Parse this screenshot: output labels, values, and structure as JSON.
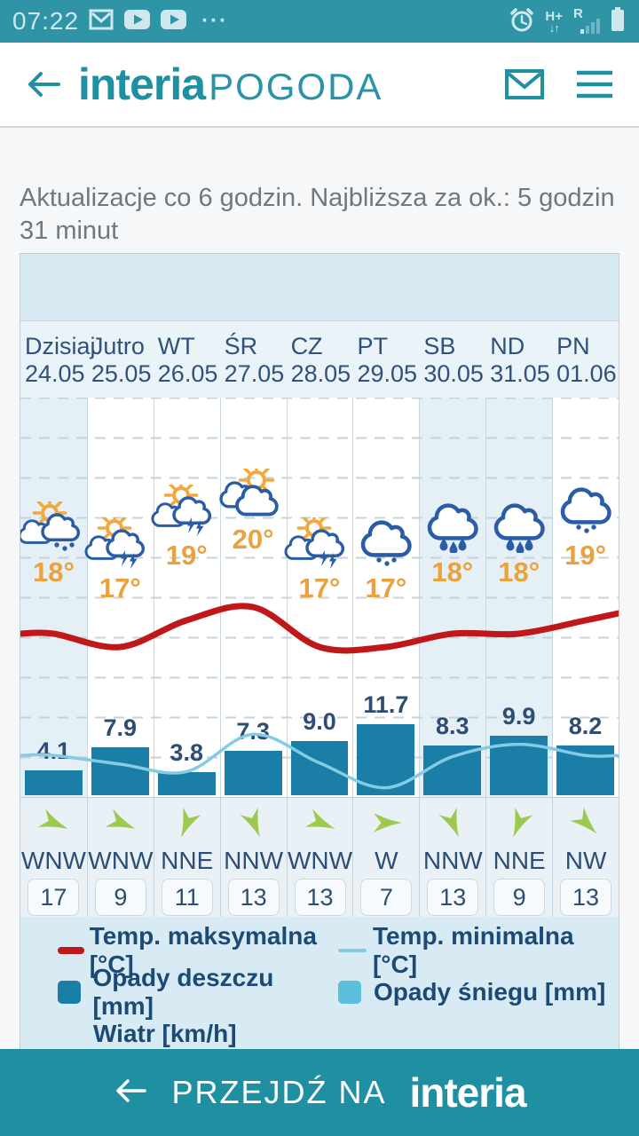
{
  "status_bar": {
    "time": "07:22",
    "notification_icons": [
      "gmail",
      "youtube",
      "youtube",
      "overflow-dots"
    ],
    "system_icons": [
      "alarm-clock",
      "network-h-plus",
      "roaming-signal",
      "battery"
    ],
    "network_label": "H+",
    "roaming_label": "R",
    "overflow_label": "···"
  },
  "header": {
    "logo_primary": "interia",
    "logo_secondary": "POGODA"
  },
  "update_notice": "Aktualizacje co 6 godzin. Najbliższa za ok.: 5 godzin 31 minut",
  "forecast": {
    "days": [
      {
        "name": "Dzisiaj",
        "date": "24.05",
        "icon": "sun-cloud-rain",
        "temp_max_label": "18°",
        "precip_mm": "4.1",
        "wind_dir": "WNW",
        "wind_speed": "17",
        "highlight": true
      },
      {
        "name": "Jutro",
        "date": "25.05",
        "icon": "sun-cloud-storm",
        "temp_max_label": "17°",
        "precip_mm": "7.9",
        "wind_dir": "WNW",
        "wind_speed": "9",
        "highlight": false
      },
      {
        "name": "WT",
        "date": "26.05",
        "icon": "sun-cloud-storm",
        "temp_max_label": "19°",
        "precip_mm": "3.8",
        "wind_dir": "NNE",
        "wind_speed": "11",
        "highlight": false
      },
      {
        "name": "ŚR",
        "date": "27.05",
        "icon": "sun-clouds",
        "temp_max_label": "20°",
        "precip_mm": "7.3",
        "wind_dir": "NNW",
        "wind_speed": "13",
        "highlight": false
      },
      {
        "name": "CZ",
        "date": "28.05",
        "icon": "sun-cloud-storm",
        "temp_max_label": "17°",
        "precip_mm": "9.0",
        "wind_dir": "WNW",
        "wind_speed": "13",
        "highlight": false
      },
      {
        "name": "PT",
        "date": "29.05",
        "icon": "cloud-rain",
        "temp_max_label": "17°",
        "precip_mm": "11.7",
        "wind_dir": "W",
        "wind_speed": "7",
        "highlight": false
      },
      {
        "name": "SB",
        "date": "30.05",
        "icon": "cloud-heavy-rain",
        "temp_max_label": "18°",
        "precip_mm": "8.3",
        "wind_dir": "NNW",
        "wind_speed": "13",
        "highlight": true
      },
      {
        "name": "ND",
        "date": "31.05",
        "icon": "cloud-heavy-rain",
        "temp_max_label": "18°",
        "precip_mm": "9.9",
        "wind_dir": "NNE",
        "wind_speed": "9",
        "highlight": true
      },
      {
        "name": "PN",
        "date": "01.06",
        "icon": "cloud-rain",
        "temp_max_label": "19°",
        "precip_mm": "8.2",
        "wind_dir": "NW",
        "wind_speed": "13",
        "highlight": false
      }
    ]
  },
  "chart_data": {
    "type": "bar+line",
    "categories": [
      "Dzisiaj 24.05",
      "Jutro 25.05",
      "WT 26.05",
      "ŚR 27.05",
      "CZ 28.05",
      "PT 29.05",
      "SB 30.05",
      "ND 31.05",
      "PN 01.06"
    ],
    "series": [
      {
        "name": "Temp. maksymalna [°C]",
        "type": "line",
        "color": "#c01818",
        "values": [
          18,
          17,
          19,
          20,
          17,
          17,
          18,
          18,
          19
        ]
      },
      {
        "name": "Temp. minimalna [°C]",
        "type": "line",
        "color": "#85cbe5",
        "estimated": true,
        "values": [
          10.7,
          10.0,
          9.4,
          12.4,
          10.1,
          8.1,
          10.6,
          11.6,
          10.7
        ]
      },
      {
        "name": "Opady deszczu [mm]",
        "type": "bar",
        "color": "#1a7ea6",
        "values": [
          4.1,
          7.9,
          3.8,
          7.3,
          9.0,
          11.7,
          8.3,
          9.9,
          8.2
        ]
      },
      {
        "name": "Opady śniegu [mm]",
        "type": "bar",
        "color": "#5bbeda",
        "values": [
          0,
          0,
          0,
          0,
          0,
          0,
          0,
          0,
          0
        ]
      },
      {
        "name": "Wiatr [km/h]",
        "type": "wind",
        "values": [
          17,
          9,
          11,
          13,
          13,
          7,
          13,
          9,
          13
        ],
        "directions": [
          "WNW",
          "WNW",
          "NNE",
          "NNW",
          "WNW",
          "W",
          "NNW",
          "NNE",
          "NW"
        ]
      }
    ],
    "grid": true,
    "legend_position": "bottom"
  },
  "legend": {
    "temp_max": "Temp. maksymalna [°C]",
    "temp_min": "Temp. minimalna [°C]",
    "rain": "Opady deszczu [mm]",
    "snow": "Opady śniegu [mm]",
    "wind": "Wiatr [km/h]"
  },
  "footer": {
    "cta": "PRZEJDŹ NA",
    "brand": "interia"
  },
  "colors": {
    "statusbar_teal": "#2e94a6",
    "brand_teal": "#1f8fa2",
    "footer_teal": "#1e90a2",
    "temp_max_line": "#c01818",
    "temp_min_line": "#85cbe5",
    "rain_bar": "#1a7ea6",
    "snow": "#5bbeda",
    "temp_label_orange": "#e9a23c",
    "day_text": "#30517a",
    "highlight_column": "#e4eff6",
    "wind_arrow_green": "#9cc94e"
  }
}
